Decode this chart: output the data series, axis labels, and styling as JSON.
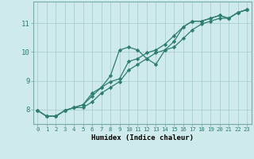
{
  "xlabel": "Humidex (Indice chaleur)",
  "ylabel": "",
  "x": [
    0,
    1,
    2,
    3,
    4,
    5,
    6,
    7,
    8,
    9,
    10,
    11,
    12,
    13,
    14,
    15,
    16,
    17,
    18,
    19,
    20,
    21,
    22,
    23
  ],
  "line1": [
    7.97,
    7.77,
    7.77,
    7.97,
    8.07,
    8.17,
    8.57,
    8.77,
    9.17,
    10.07,
    10.17,
    10.07,
    9.77,
    9.57,
    10.07,
    10.37,
    10.87,
    11.07,
    11.07,
    11.17,
    11.27,
    11.17,
    11.37,
    11.47
  ],
  "line2": [
    7.97,
    7.77,
    7.77,
    7.97,
    8.07,
    8.17,
    8.47,
    8.77,
    8.97,
    9.07,
    9.67,
    9.77,
    9.97,
    10.07,
    10.27,
    10.57,
    10.87,
    11.07,
    11.07,
    11.17,
    11.27,
    11.17,
    11.37,
    11.47
  ],
  "line3": [
    7.97,
    7.77,
    7.77,
    7.97,
    8.07,
    8.07,
    8.27,
    8.57,
    8.77,
    8.97,
    9.37,
    9.57,
    9.77,
    9.97,
    10.07,
    10.17,
    10.47,
    10.77,
    10.97,
    11.07,
    11.17,
    11.17,
    11.37,
    11.47
  ],
  "ylim": [
    7.5,
    11.75
  ],
  "xlim": [
    -0.5,
    23.5
  ],
  "yticks": [
    8,
    9,
    10,
    11
  ],
  "xticks": [
    0,
    1,
    2,
    3,
    4,
    5,
    6,
    7,
    8,
    9,
    10,
    11,
    12,
    13,
    14,
    15,
    16,
    17,
    18,
    19,
    20,
    21,
    22,
    23
  ],
  "line_color": "#2e7d6e",
  "bg_color": "#ceeaea",
  "grid_color": "#aacfcf",
  "marker": "D",
  "marker_size": 2.2,
  "linewidth": 0.9,
  "xlabel_fontsize": 6.5,
  "ytick_fontsize": 6.5,
  "xtick_fontsize": 5.2
}
